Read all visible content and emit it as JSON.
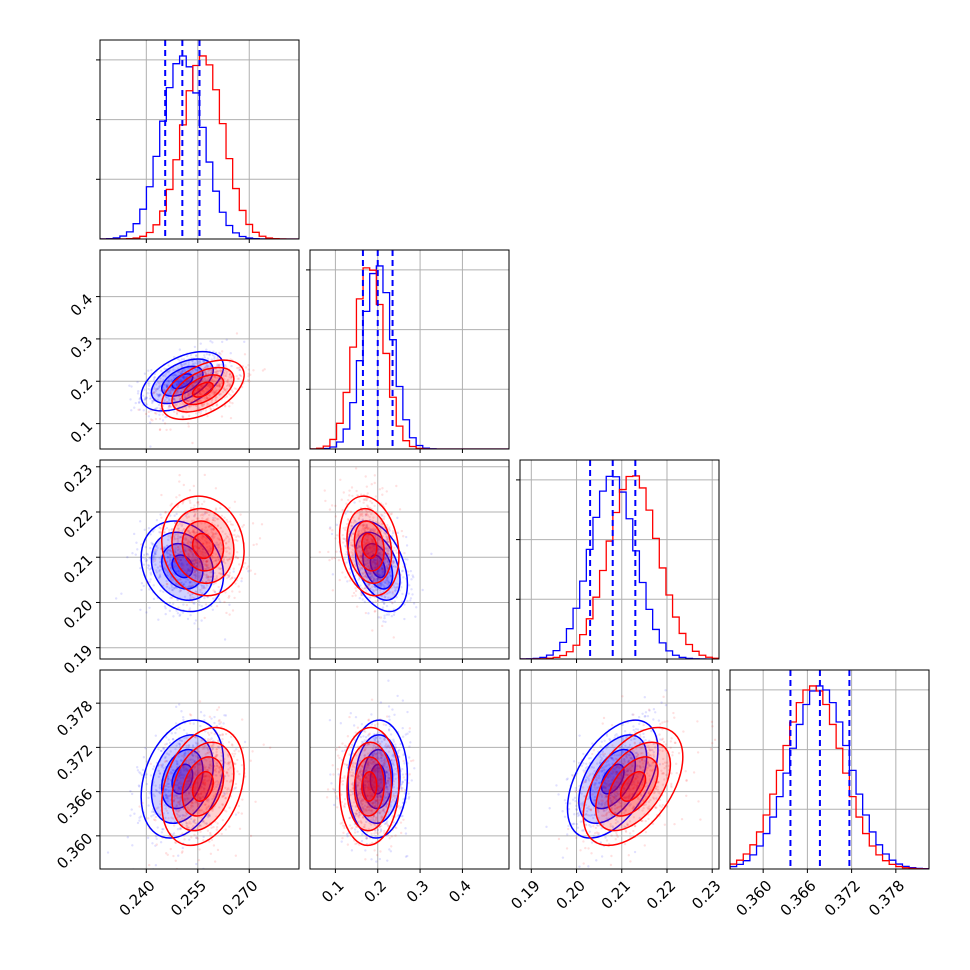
{
  "chart_data": {
    "type": "corner",
    "parameters": 4,
    "series": [
      {
        "name": "",
        "color": "#0000ff",
        "mean": [
          0.2505,
          0.2,
          0.208,
          0.3677
        ],
        "std": [
          0.006,
          0.035,
          0.005,
          0.004
        ],
        "correlation": [
          [
            1,
            0.5,
            -0.2,
            0.3
          ],
          [
            0.5,
            1,
            -0.4,
            0.05
          ],
          [
            -0.2,
            -0.4,
            1,
            0.5
          ],
          [
            0.3,
            0.05,
            0.5,
            1
          ]
        ]
      },
      {
        "name": "",
        "color": "#ff0000",
        "mean": [
          0.2565,
          0.18,
          0.2125,
          0.3667
        ],
        "std": [
          0.006,
          0.035,
          0.0055,
          0.004
        ],
        "correlation": [
          [
            1,
            0.5,
            -0.1,
            0.3
          ],
          [
            0.5,
            1,
            -0.2,
            0.05
          ],
          [
            -0.1,
            -0.2,
            1,
            0.5
          ],
          [
            0.3,
            0.05,
            0.5,
            1
          ]
        ]
      }
    ],
    "quantile_lines": {
      "color": "#0000ff",
      "values": [
        [
          0.2455,
          0.2505,
          0.2555
        ],
        [
          0.165,
          0.2,
          0.235
        ],
        [
          0.203,
          0.208,
          0.213
        ],
        [
          0.3637,
          0.3677,
          0.3717
        ]
      ]
    },
    "axes": [
      {
        "range": [
          0.2265,
          0.2845
        ],
        "ticks": [
          0.24,
          0.255,
          0.27
        ],
        "tick_labels": [
          "0.240",
          "0.255",
          "0.270"
        ]
      },
      {
        "range": [
          0.04,
          0.51
        ],
        "ticks": [
          0.1,
          0.2,
          0.3,
          0.4
        ],
        "tick_labels": [
          "0.1",
          "0.2",
          "0.3",
          "0.4"
        ]
      },
      {
        "range": [
          0.1875,
          0.2315
        ],
        "ticks": [
          0.19,
          0.2,
          0.21,
          0.22,
          0.23
        ],
        "tick_labels": [
          "0.19",
          "0.20",
          "0.21",
          "0.22",
          "0.23"
        ]
      },
      {
        "range": [
          0.3555,
          0.3825
        ],
        "ticks": [
          0.36,
          0.366,
          0.372,
          0.378
        ],
        "tick_labels": [
          "0.360",
          "0.366",
          "0.372",
          "0.378"
        ]
      }
    ],
    "contour_levels_sigma": [
      0.5,
      1.0,
      1.5,
      2.0
    ],
    "grid": true,
    "legend": "none"
  }
}
